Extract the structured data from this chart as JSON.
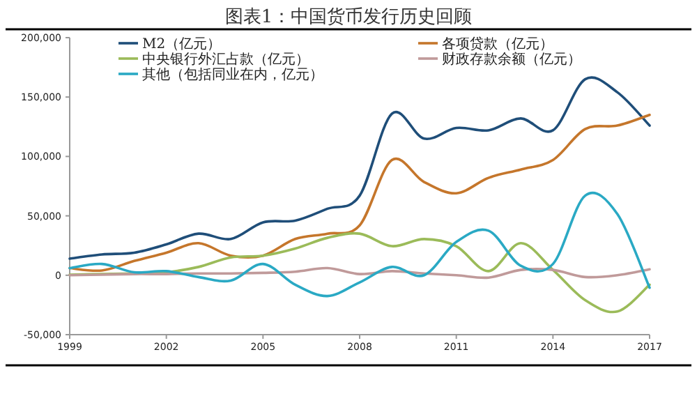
{
  "chart_data": {
    "type": "line",
    "title": "图表1：中国货币发行历史回顾",
    "x": [
      1999,
      2000,
      2001,
      2002,
      2003,
      2004,
      2005,
      2006,
      2007,
      2008,
      2009,
      2010,
      2011,
      2012,
      2013,
      2014,
      2015,
      2016,
      2017
    ],
    "xlim": [
      1999,
      2017
    ],
    "xticks": [
      1999,
      2002,
      2005,
      2008,
      2011,
      2014,
      2017
    ],
    "ylim": [
      -50000,
      200000
    ],
    "yticks": [
      {
        "value": -50000,
        "label": "-50,000"
      },
      0,
      {
        "value": 50000,
        "label": "50,000"
      },
      {
        "value": 100000,
        "label": "100,000"
      },
      {
        "value": 150000,
        "label": "150,000"
      },
      {
        "value": 200000,
        "label": "200,000"
      }
    ],
    "legend": "top",
    "series": [
      {
        "name": "M2（亿元）",
        "color": "#1f4e79",
        "values": [
          14000,
          17500,
          19000,
          26000,
          35000,
          30500,
          44500,
          46000,
          56000,
          67000,
          136000,
          115000,
          124000,
          122000,
          132000,
          122000,
          165000,
          154000,
          126000
        ]
      },
      {
        "name": "各项贷款（亿元）",
        "color": "#c5762b",
        "values": [
          6000,
          4000,
          12000,
          19000,
          27000,
          16500,
          16500,
          30500,
          35000,
          42000,
          97000,
          78500,
          69000,
          82000,
          89000,
          97000,
          123000,
          126000,
          135000
        ]
      },
      {
        "name": "中央银行外汇占款（亿元）",
        "color": "#9bbb59",
        "values": [
          500,
          1000,
          1500,
          2500,
          7000,
          15000,
          16500,
          22500,
          31500,
          35000,
          24500,
          30500,
          24500,
          3500,
          27000,
          4500,
          -21000,
          -30500,
          -8000
        ]
      },
      {
        "name": "财政存款余额（亿元）",
        "color": "#c09a9a",
        "values": [
          0,
          500,
          1000,
          1000,
          1500,
          1500,
          2000,
          3000,
          6000,
          1000,
          3500,
          1500,
          0,
          -2000,
          4500,
          4500,
          -1500,
          0,
          5000
        ]
      },
      {
        "name": "其他（包括同业在内，亿元）",
        "color": "#2aa9c4",
        "values": [
          6000,
          9500,
          2500,
          3500,
          -1500,
          -4500,
          9500,
          -8000,
          -17500,
          -6000,
          7000,
          0,
          28000,
          37500,
          8000,
          9500,
          67000,
          51500,
          -10500
        ]
      }
    ]
  }
}
